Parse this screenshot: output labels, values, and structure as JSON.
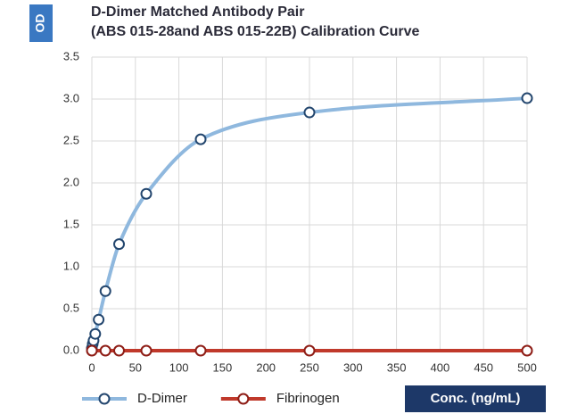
{
  "chart_data": {
    "type": "line",
    "title": "D-Dimer Matched Antibody Pair",
    "subtitle": "(ABS 015-28and ABS 015-22B) Calibration Curve",
    "y_label": "OD",
    "x_label": "Conc. (ng/mL)",
    "xlim": [
      0,
      500
    ],
    "xticks": [
      0,
      50,
      100,
      150,
      200,
      250,
      300,
      350,
      400,
      450,
      500
    ],
    "ylim": [
      0,
      3.5
    ],
    "yticks": [
      {
        "value": 0,
        "label": "0.0"
      },
      0.5,
      {
        "value": 1,
        "label": "1.0"
      },
      1.5,
      {
        "value": 2,
        "label": "2.0"
      },
      2.5,
      {
        "value": 3,
        "label": "3.0"
      },
      3.5
    ],
    "grid": true,
    "legend": "bottom",
    "series": [
      {
        "name": "D-Dimer",
        "color": "#8fb8de",
        "marker_color": "#23466e",
        "x": [
          0,
          0.98,
          1.95,
          3.9,
          7.8,
          15.6,
          31.25,
          62.5,
          125,
          250,
          500
        ],
        "values": [
          0.03,
          0.08,
          0.12,
          0.2,
          0.37,
          0.71,
          1.27,
          1.87,
          2.52,
          2.84,
          3.01
        ]
      },
      {
        "name": "Fibrinogen",
        "color": "#c0392b",
        "marker_color": "#8e1d16",
        "x": [
          0,
          15.6,
          31.25,
          62.5,
          125,
          250,
          500
        ],
        "values": [
          0,
          0,
          0,
          0,
          0,
          0,
          0
        ]
      }
    ]
  }
}
